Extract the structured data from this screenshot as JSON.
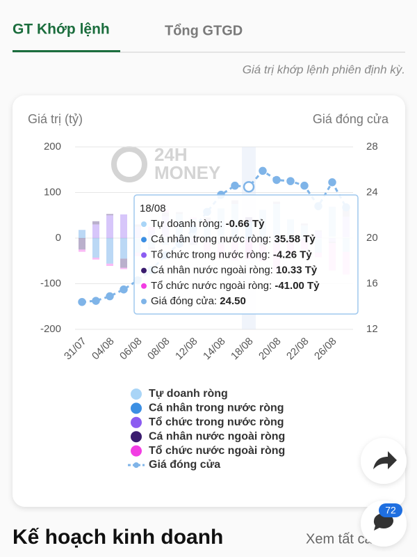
{
  "tabs": [
    {
      "label": "GT Khớp lệnh",
      "active": true
    },
    {
      "label": "Tổng GTGD",
      "active": false
    }
  ],
  "note": "Giá trị khớp lệnh phiên định kỳ.",
  "chart_data": {
    "type": "bar",
    "stacked": true,
    "y_label": "Giá trị (tỷ)",
    "y2_label": "Giá đóng cửa",
    "watermark": [
      "24H",
      "MONEY"
    ],
    "categories": [
      "31/07",
      null,
      "04/08",
      null,
      "06/08",
      null,
      "08/08",
      null,
      "12/08",
      null,
      "14/08",
      null,
      "18/08",
      null,
      "20/08",
      null,
      "22/08",
      null,
      "26/08",
      null
    ],
    "series": [
      {
        "name": "Tự doanh ròng",
        "color": "#a9d5f7",
        "values": [
          0,
          0,
          0,
          0,
          -2,
          2,
          3,
          1,
          2,
          -3,
          5,
          -4,
          -0.66,
          2,
          -3,
          1,
          3,
          -2,
          4,
          2
        ]
      },
      {
        "name": "Cá nhân trong nước ròng",
        "color": "#3c8fe3",
        "values": [
          18,
          -43,
          -56,
          -45,
          -30,
          -20,
          -15,
          52,
          40,
          35,
          60,
          75,
          35.58,
          60,
          75,
          40,
          25,
          -30,
          65,
          -30
        ]
      },
      {
        "name": "Tổ chức trong nước ròng",
        "color": "#8b5cf1",
        "values": [
          0,
          30,
          50,
          52,
          25,
          15,
          45,
          -8,
          -10,
          -6,
          -8,
          -5,
          -4.26,
          -10,
          -8,
          -5,
          -6,
          15,
          -8,
          45
        ]
      },
      {
        "name": "Cá nhân nước ngoài ròng",
        "color": "#3a1c6e",
        "values": [
          -25,
          7,
          3,
          -20,
          5,
          -5,
          8,
          4,
          -5,
          10,
          -5,
          8,
          10.33,
          -6,
          5,
          -4,
          4,
          2,
          -3,
          20
        ]
      },
      {
        "name": "Tổ chức nước ngoài ròng",
        "color": "#f23de3",
        "values": [
          -5,
          -4,
          -5,
          -3,
          -8,
          8,
          6,
          -3,
          3,
          -20,
          -30,
          -40,
          -41.0,
          -35,
          -60,
          -25,
          -20,
          -10,
          -60,
          -50
        ]
      },
      {
        "name": "Giá đóng cửa",
        "type": "line",
        "axis": "y2",
        "color": "#7fb4e8",
        "values": [
          14.4,
          14.5,
          14.9,
          15.5,
          16.3,
          17.2,
          18.5,
          19.5,
          20.8,
          22.3,
          23.8,
          24.6,
          24.5,
          25.9,
          25.1,
          25.0,
          24.6,
          22.8,
          24.9,
          22.7
        ]
      }
    ],
    "ylim": [
      -200,
      200
    ],
    "yticks": [
      -200,
      -100,
      0,
      100,
      200
    ],
    "y2lim": [
      12,
      28
    ],
    "y2ticks": [
      12,
      16,
      20,
      24,
      28
    ],
    "grid": true,
    "tooltip": {
      "category": "18/08",
      "items": [
        {
          "label": "Tự doanh ròng:",
          "value": "-0.66 Tỷ"
        },
        {
          "label": "Cá nhân trong nước ròng:",
          "value": "35.58 Tỷ"
        },
        {
          "label": "Tổ chức trong nước ròng:",
          "value": "-4.26 Tỷ"
        },
        {
          "label": "Cá nhân nước ngoài ròng:",
          "value": "10.33 Tỷ"
        },
        {
          "label": "Tổ chức nước ngoài ròng:",
          "value": "-41.00 Tỷ"
        },
        {
          "label": "Giá đóng cửa:",
          "value": "24.50"
        }
      ]
    }
  },
  "section": {
    "title": "Kế hoạch kinh doanh",
    "link": "Xem tất cả"
  },
  "chat_badge": 72
}
